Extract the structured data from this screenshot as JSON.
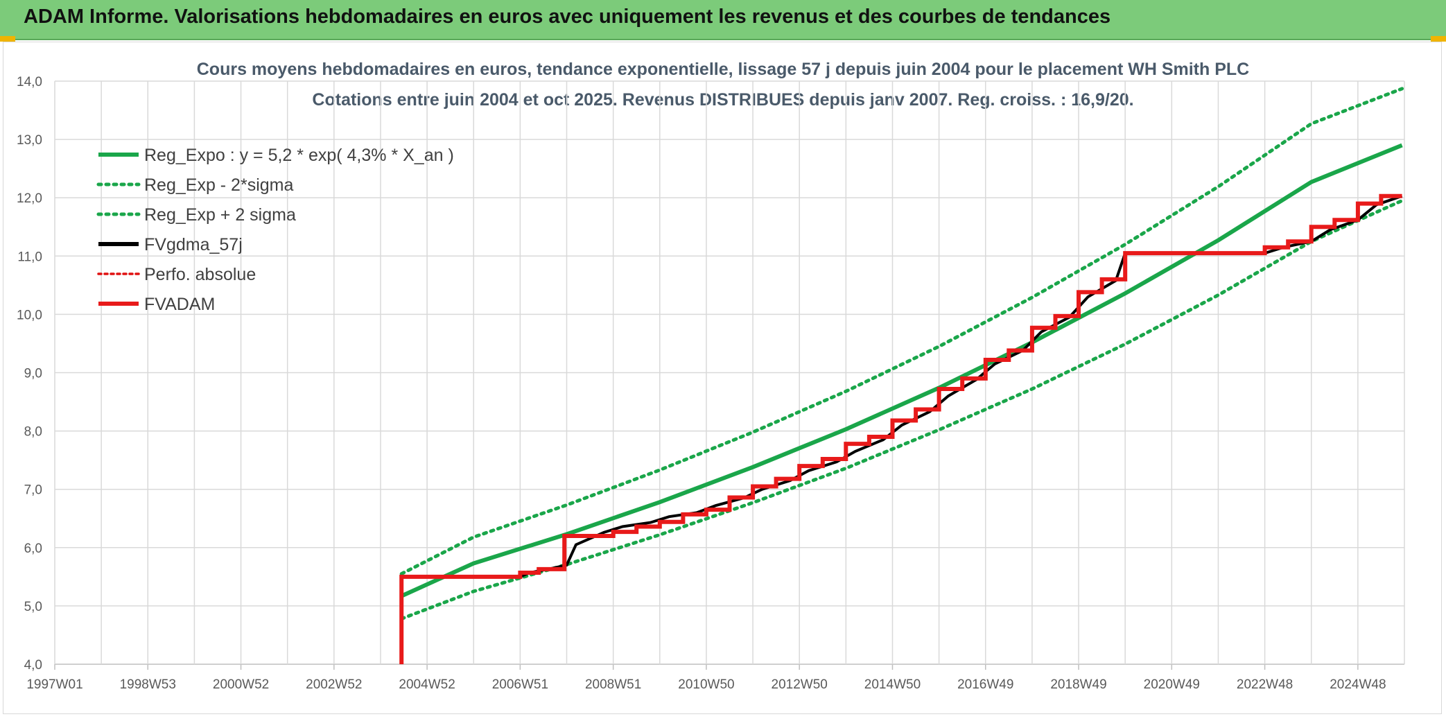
{
  "header": {
    "title": "ADAM Informe. Valorisations hebdomadaires en euros avec uniquement les revenus et des courbes de tendances"
  },
  "chart_data": {
    "type": "line",
    "title_line1": "Cours moyens hebdomadaires en euros, tendance exponentielle, lissage 57 j depuis juin 2004 pour le placement WH Smith PLC",
    "title_line2": "Cotations entre juin 2004 et oct 2025. Revenus DISTRIBUES depuis janv 2007. Reg. croiss. : 16,9/20.",
    "xlabel": "",
    "ylabel": "",
    "ylim": [
      4.0,
      14.0
    ],
    "xlim": [
      1997.0,
      2026.0
    ],
    "y_ticks": [
      {
        "v": 4.0,
        "label": "4,0"
      },
      {
        "v": 5.0,
        "label": "5,0"
      },
      {
        "v": 6.0,
        "label": "6,0"
      },
      {
        "v": 7.0,
        "label": "7,0"
      },
      {
        "v": 8.0,
        "label": "8,0"
      },
      {
        "v": 9.0,
        "label": "9,0"
      },
      {
        "v": 10.0,
        "label": "10,0"
      },
      {
        "v": 11.0,
        "label": "11,0"
      },
      {
        "v": 12.0,
        "label": "12,0"
      },
      {
        "v": 13.0,
        "label": "13,0"
      },
      {
        "v": 14.0,
        "label": "14,0"
      }
    ],
    "x_ticks": [
      {
        "v": 1997.0,
        "label": "1997W01"
      },
      {
        "v": 1999.0,
        "label": "1998W53"
      },
      {
        "v": 2001.0,
        "label": "2000W52"
      },
      {
        "v": 2003.0,
        "label": "2002W52"
      },
      {
        "v": 2005.0,
        "label": "2004W52"
      },
      {
        "v": 2007.0,
        "label": "2006W51"
      },
      {
        "v": 2009.0,
        "label": "2008W51"
      },
      {
        "v": 2011.0,
        "label": "2010W50"
      },
      {
        "v": 2013.0,
        "label": "2012W50"
      },
      {
        "v": 2015.0,
        "label": "2014W50"
      },
      {
        "v": 2017.0,
        "label": "2016W49"
      },
      {
        "v": 2019.0,
        "label": "2018W49"
      },
      {
        "v": 2021.0,
        "label": "2020W49"
      },
      {
        "v": 2023.0,
        "label": "2022W48"
      },
      {
        "v": 2025.0,
        "label": "2024W48"
      }
    ],
    "x_minor_grid": [
      1998,
      2000,
      2002,
      2004,
      2006,
      2008,
      2010,
      2012,
      2014,
      2016,
      2018,
      2020,
      2022,
      2024,
      2026
    ],
    "grid": true,
    "legend_position": "top-left",
    "series": [
      {
        "name": "Reg_Expo : y = 5,2 * exp( 4,3% *  X_an )",
        "color": "#1aa64a",
        "style": "solid",
        "x": [
          2004.45,
          2006,
          2008,
          2010,
          2012,
          2014,
          2016,
          2018,
          2020,
          2022,
          2024,
          2025.95
        ],
        "values": [
          5.17,
          5.73,
          6.23,
          6.78,
          7.38,
          8.03,
          8.74,
          9.52,
          10.36,
          11.27,
          12.27,
          12.9
        ]
      },
      {
        "name": "Reg_Exp - 2*sigma",
        "color": "#1aa64a",
        "style": "dotted",
        "x": [
          2004.45,
          2006,
          2008,
          2010,
          2012,
          2014,
          2016,
          2018,
          2020,
          2022,
          2024,
          2025.95
        ],
        "values": [
          4.78,
          5.25,
          5.71,
          6.22,
          6.77,
          7.36,
          8.02,
          8.72,
          9.49,
          10.33,
          11.25,
          11.95
        ]
      },
      {
        "name": "Reg_Exp + 2 sigma",
        "color": "#1aa64a",
        "style": "dotted",
        "x": [
          2004.45,
          2006,
          2008,
          2010,
          2012,
          2014,
          2016,
          2018,
          2020,
          2022,
          2024,
          2025.95
        ],
        "values": [
          5.55,
          6.18,
          6.73,
          7.33,
          7.98,
          8.68,
          9.45,
          10.29,
          11.2,
          12.19,
          13.27,
          13.87
        ]
      },
      {
        "name": "FVgdma_57j",
        "color": "#000000",
        "style": "solid",
        "x": [
          2004.45,
          2004.45,
          2007.0,
          2007.2,
          2007.6,
          2008.0,
          2008.2,
          2008.8,
          2009.2,
          2009.8,
          2010.2,
          2010.8,
          2011.2,
          2011.8,
          2012.2,
          2012.8,
          2013.2,
          2013.8,
          2014.2,
          2014.8,
          2015.2,
          2015.8,
          2016.2,
          2016.8,
          2017.2,
          2017.8,
          2018.2,
          2018.8,
          2019.2,
          2019.8,
          2020.0,
          2023.0,
          2023.4,
          2024.0,
          2024.4,
          2025.0,
          2025.4,
          2025.95
        ],
        "values": [
          4.0,
          5.5,
          5.5,
          5.57,
          5.63,
          5.7,
          6.05,
          6.26,
          6.36,
          6.43,
          6.53,
          6.6,
          6.72,
          6.85,
          7.0,
          7.15,
          7.32,
          7.47,
          7.65,
          7.85,
          8.1,
          8.33,
          8.6,
          8.88,
          9.15,
          9.38,
          9.7,
          9.95,
          10.3,
          10.58,
          11.05,
          11.05,
          11.15,
          11.25,
          11.45,
          11.62,
          11.88,
          12.03
        ]
      },
      {
        "name": "Perfo. absolue",
        "color": "#e01010",
        "style": "dotted",
        "x": [],
        "values": []
      },
      {
        "name": "FVADAM",
        "color": "#e81a1a",
        "style": "solid",
        "x": [
          2004.45,
          2004.45,
          2007.0,
          2007.0,
          2007.4,
          2007.4,
          2007.95,
          2007.95,
          2009.0,
          2009.0,
          2009.5,
          2009.5,
          2010.0,
          2010.0,
          2010.5,
          2010.5,
          2011.0,
          2011.0,
          2011.5,
          2011.5,
          2012.0,
          2012.0,
          2012.5,
          2012.5,
          2013.0,
          2013.0,
          2013.5,
          2013.5,
          2014.0,
          2014.0,
          2014.5,
          2014.5,
          2015.0,
          2015.0,
          2015.5,
          2015.5,
          2016.0,
          2016.0,
          2016.5,
          2016.5,
          2017.0,
          2017.0,
          2017.5,
          2017.5,
          2018.0,
          2018.0,
          2018.5,
          2018.5,
          2019.0,
          2019.0,
          2019.5,
          2019.5,
          2020.0,
          2020.0,
          2023.0,
          2023.0,
          2023.5,
          2023.5,
          2024.0,
          2024.0,
          2024.5,
          2024.5,
          2025.0,
          2025.0,
          2025.5,
          2025.5,
          2025.95
        ],
        "values": [
          4.0,
          5.5,
          5.5,
          5.57,
          5.57,
          5.63,
          5.63,
          6.2,
          6.2,
          6.27,
          6.27,
          6.36,
          6.36,
          6.44,
          6.44,
          6.57,
          6.57,
          6.65,
          6.65,
          6.86,
          6.86,
          7.05,
          7.05,
          7.18,
          7.18,
          7.4,
          7.4,
          7.52,
          7.52,
          7.78,
          7.78,
          7.9,
          7.9,
          8.18,
          8.18,
          8.37,
          8.37,
          8.72,
          8.72,
          8.9,
          8.9,
          9.22,
          9.22,
          9.38,
          9.38,
          9.77,
          9.77,
          9.97,
          9.97,
          10.38,
          10.38,
          10.6,
          10.6,
          11.05,
          11.05,
          11.15,
          11.15,
          11.25,
          11.25,
          11.5,
          11.5,
          11.62,
          11.62,
          11.9,
          11.9,
          12.03,
          12.03
        ]
      }
    ]
  }
}
